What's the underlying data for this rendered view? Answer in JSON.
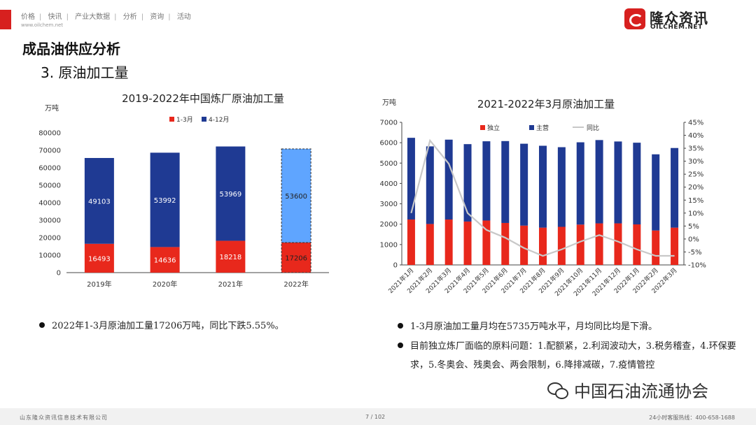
{
  "header": {
    "nav": [
      "价格",
      "快讯",
      "产业大数据",
      "分析",
      "资询",
      "活动"
    ],
    "site": "www.oilchem.net",
    "logo_cn": "隆众资讯",
    "logo_en": "OILCHEM.NET"
  },
  "page": {
    "section_title": "成品油供应分析",
    "sub_title": "3. 原油加工量"
  },
  "chart_left": {
    "type": "stacked-bar",
    "title": "2019-2022年中国炼厂原油加工量",
    "ylabel": "万吨",
    "categories": [
      "2019年",
      "2020年",
      "2021年",
      "2022年"
    ],
    "ylim": [
      0,
      80000
    ],
    "yticks": [
      "0",
      "10000",
      "20000",
      "30000",
      "40000",
      "50000",
      "60000",
      "70000",
      "80000"
    ],
    "legend_position": "top",
    "colors": {
      "q1": "#e8281c",
      "q2": "#1f3a93",
      "forecast": "#5fa5ff"
    },
    "series": [
      {
        "name": "1-3月",
        "values": [
          16493,
          14636,
          18218,
          17206
        ],
        "labels": [
          "16493",
          "14636",
          "18218",
          "17206"
        ]
      },
      {
        "name": "4-12月",
        "values": [
          49103,
          53992,
          53969,
          53600
        ],
        "labels": [
          "49103",
          "53992",
          "53969",
          "53600"
        ]
      }
    ]
  },
  "chart_right": {
    "type": "stacked-bar-line",
    "title": "2021-2022年3月原油加工量",
    "ylabel": "万吨",
    "categories": [
      "2021年1月",
      "2021年2月",
      "2021年3月",
      "2021年4月",
      "2021年5月",
      "2021年6月",
      "2021年7月",
      "2021年8月",
      "2021年9月",
      "2021年10月",
      "2021年11月",
      "2021年12月",
      "2022年1月",
      "2022年2月",
      "2022年3月"
    ],
    "ylim": [
      0,
      7000
    ],
    "yticks": [
      "0",
      "1000",
      "2000",
      "3000",
      "4000",
      "5000",
      "6000",
      "7000"
    ],
    "y2lim": [
      -10,
      45
    ],
    "y2ticks": [
      "-10%",
      "-5%",
      "0%",
      "5%",
      "10%",
      "15%",
      "20%",
      "25%",
      "30%",
      "35%",
      "40%",
      "45%"
    ],
    "legend_position": "top",
    "colors": {
      "independent": "#e8281c",
      "main": "#1f3a93",
      "yoy": "#c8c8c8"
    },
    "series": [
      {
        "name": "独立",
        "values": [
          2230,
          2010,
          2230,
          2130,
          2180,
          2060,
          1930,
          1830,
          1870,
          1980,
          2040,
          2040,
          1990,
          1690,
          1830
        ]
      },
      {
        "name": "主营",
        "values": [
          4010,
          3810,
          3920,
          3800,
          3890,
          4020,
          4020,
          4020,
          3910,
          4040,
          4090,
          4020,
          4010,
          3740,
          3910
        ]
      },
      {
        "name": "同比",
        "values": [
          10,
          38,
          29,
          10,
          3.5,
          0.5,
          -3.5,
          -6.5,
          -4,
          -1,
          1.5,
          -1,
          -4,
          -6.5,
          -6.5
        ]
      }
    ]
  },
  "bullets_left": [
    "2022年1-3月原油加工量17206万吨，同比下跌5.55%。"
  ],
  "bullets_right": [
    "1-3月原油加工量月均在5735万吨水平，月均同比均是下滑。",
    "目前独立炼厂面临的原料问题：1.配额紧，2.利润波动大，3.税务稽查，4.环保要求，5.冬奥会、残奥会、两会限制，6.降排减碳，7.疫情管控"
  ],
  "footer": {
    "company": "山东隆众资讯信息技术有限公司",
    "page": "7 / 102",
    "hotline": "24小时客服热线：400-658-1688"
  },
  "wechat": "中国石油流通协会"
}
